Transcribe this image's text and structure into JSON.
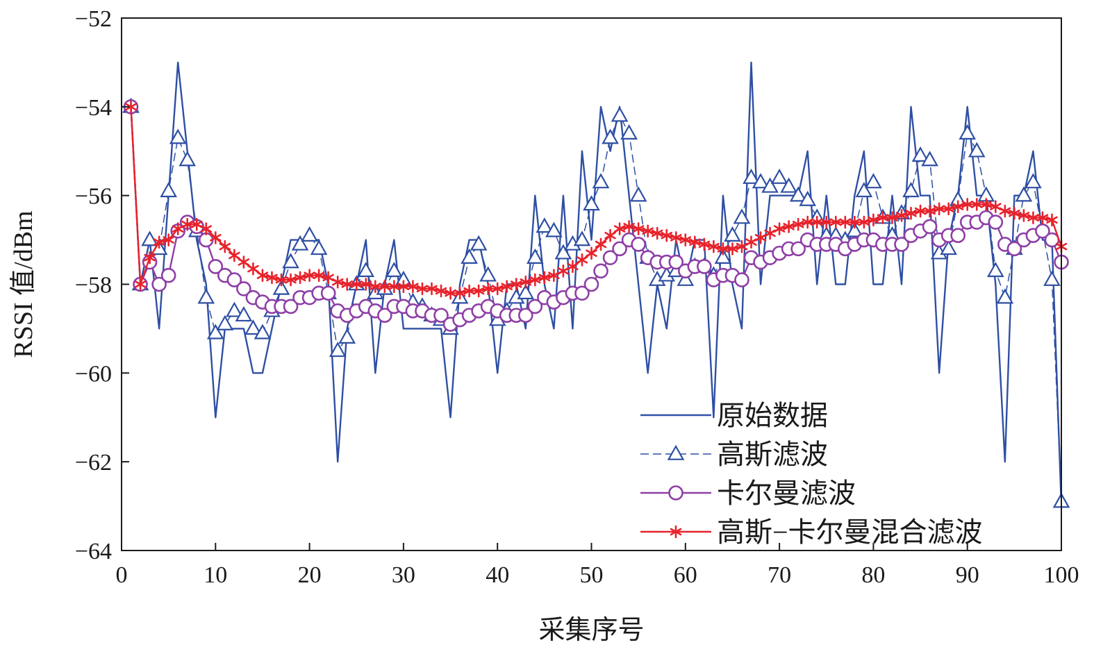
{
  "chart_data": {
    "type": "line",
    "xlabel": "采集序号",
    "ylabel": "RSSI 值/dBm",
    "xlim": [
      0,
      100
    ],
    "ylim": [
      -64,
      -52
    ],
    "xticks": [
      0,
      10,
      20,
      30,
      40,
      50,
      60,
      70,
      80,
      90,
      100
    ],
    "yticks": [
      -64,
      -62,
      -60,
      -58,
      -56,
      -54,
      -52
    ],
    "ytick_labels": [
      "−64",
      "−62",
      "−60",
      "−58",
      "−56",
      "−54",
      "−52"
    ],
    "grid": false,
    "legend_position": "bottom-right",
    "x": [
      1,
      2,
      3,
      4,
      5,
      6,
      7,
      8,
      9,
      10,
      11,
      12,
      13,
      14,
      15,
      16,
      17,
      18,
      19,
      20,
      21,
      22,
      23,
      24,
      25,
      26,
      27,
      28,
      29,
      30,
      31,
      32,
      33,
      34,
      35,
      36,
      37,
      38,
      39,
      40,
      41,
      42,
      43,
      44,
      45,
      46,
      47,
      48,
      49,
      50,
      51,
      52,
      53,
      54,
      55,
      56,
      57,
      58,
      59,
      60,
      61,
      62,
      63,
      64,
      65,
      66,
      67,
      68,
      69,
      70,
      71,
      72,
      73,
      74,
      75,
      76,
      77,
      78,
      79,
      80,
      81,
      82,
      83,
      84,
      85,
      86,
      87,
      88,
      89,
      90,
      91,
      92,
      93,
      94,
      95,
      96,
      97,
      98,
      99,
      100
    ],
    "series": [
      {
        "name": "原始数据",
        "color": "#2e4fa3",
        "marker": "none",
        "dash": "solid",
        "values": [
          -54,
          -58,
          -57,
          -59,
          -56,
          -53,
          -55,
          -57,
          -58,
          -61,
          -59,
          -59,
          -59,
          -60,
          -60,
          -59,
          -58,
          -57,
          -57,
          -57,
          -57,
          -58,
          -62,
          -59,
          -58,
          -57,
          -60,
          -58,
          -57,
          -59,
          -59,
          -59,
          -59,
          -59,
          -61,
          -58,
          -57,
          -57,
          -58,
          -60,
          -58,
          -58,
          -59,
          -56,
          -58,
          -59,
          -56,
          -59,
          -55,
          -57,
          -54,
          -55,
          -54,
          -56,
          -58,
          -60,
          -58,
          -59,
          -57,
          -58,
          -57,
          -57,
          -61,
          -56,
          -58,
          -59,
          -53,
          -58,
          -56,
          -56,
          -56,
          -56,
          -55,
          -58,
          -56,
          -58,
          -58,
          -56,
          -55,
          -58,
          -58,
          -56,
          -58,
          -54,
          -56,
          -56,
          -60,
          -57,
          -56,
          -54,
          -56,
          -56,
          -58,
          -62,
          -56,
          -56,
          -55,
          -57,
          -57,
          -63
        ]
      },
      {
        "name": "高斯滤波",
        "color": "#2e4fa3",
        "marker": "triangle",
        "dash": "dashed",
        "values": [
          -54,
          -58,
          -57,
          -57.2,
          -55.9,
          -54.7,
          -55.2,
          -56.8,
          -58.3,
          -59.1,
          -58.9,
          -58.6,
          -58.7,
          -59,
          -59.1,
          -58.6,
          -58.1,
          -57.5,
          -57.1,
          -56.9,
          -57.2,
          -58.2,
          -59.5,
          -59.2,
          -58,
          -57.7,
          -58.2,
          -58.1,
          -57.7,
          -57.9,
          -58.4,
          -58.5,
          -58.7,
          -58.8,
          -59,
          -58.3,
          -57.4,
          -57.1,
          -57.8,
          -58.8,
          -58.6,
          -58.3,
          -58.2,
          -57.4,
          -56.7,
          -56.8,
          -57.3,
          -57.1,
          -57,
          -56.2,
          -55.7,
          -54.7,
          -54.2,
          -54.6,
          -56,
          -57.4,
          -57.9,
          -57.8,
          -57.7,
          -57.9,
          -57.6,
          -57.6,
          -57.8,
          -57.4,
          -56.9,
          -56.5,
          -55.6,
          -55.7,
          -55.8,
          -55.6,
          -55.8,
          -56,
          -56.1,
          -56.5,
          -56.9,
          -56.9,
          -57,
          -56.8,
          -55.9,
          -55.7,
          -56.5,
          -56.9,
          -56.4,
          -55.9,
          -55.1,
          -55.2,
          -57.3,
          -57.2,
          -56.1,
          -54.6,
          -55,
          -56,
          -57.7,
          -58.3,
          -57.2,
          -56,
          -55.7,
          -56.8,
          -57.9,
          -62.9
        ]
      },
      {
        "name": "卡尔曼滤波",
        "color": "#8e3fa6",
        "marker": "circle",
        "dash": "solid",
        "values": [
          -54,
          -58,
          -57.5,
          -58,
          -57.8,
          -56.8,
          -56.6,
          -56.7,
          -57,
          -57.6,
          -57.8,
          -57.9,
          -58.1,
          -58.3,
          -58.4,
          -58.5,
          -58.5,
          -58.5,
          -58.3,
          -58.3,
          -58.2,
          -58.2,
          -58.6,
          -58.7,
          -58.6,
          -58.5,
          -58.6,
          -58.7,
          -58.5,
          -58.5,
          -58.6,
          -58.6,
          -58.7,
          -58.7,
          -58.9,
          -58.8,
          -58.7,
          -58.6,
          -58.5,
          -58.6,
          -58.7,
          -58.7,
          -58.7,
          -58.5,
          -58.3,
          -58.4,
          -58.3,
          -58.2,
          -58.2,
          -58,
          -57.7,
          -57.4,
          -57.2,
          -57,
          -57.1,
          -57.4,
          -57.5,
          -57.5,
          -57.5,
          -57.7,
          -57.6,
          -57.6,
          -57.9,
          -57.8,
          -57.8,
          -57.9,
          -57.4,
          -57.5,
          -57.4,
          -57.3,
          -57.2,
          -57.2,
          -57,
          -57.1,
          -57.1,
          -57.1,
          -57.2,
          -57.1,
          -57,
          -57,
          -57.1,
          -57.1,
          -57.1,
          -56.9,
          -56.8,
          -56.7,
          -57,
          -56.9,
          -56.9,
          -56.6,
          -56.6,
          -56.5,
          -56.6,
          -57.1,
          -57.2,
          -57,
          -56.9,
          -56.8,
          -57,
          -57.5
        ]
      },
      {
        "name": "高斯−卡尔曼混合滤波",
        "color": "#e8222b",
        "marker": "asterisk",
        "dash": "solid",
        "values": [
          -54,
          -58,
          -57.4,
          -57.05,
          -57,
          -56.75,
          -56.65,
          -56.65,
          -56.75,
          -56.95,
          -57.15,
          -57.35,
          -57.5,
          -57.65,
          -57.8,
          -57.85,
          -57.9,
          -57.9,
          -57.85,
          -57.8,
          -57.8,
          -57.85,
          -57.95,
          -58,
          -58,
          -58,
          -58.05,
          -58.05,
          -58.05,
          -58.05,
          -58.05,
          -58.1,
          -58.1,
          -58.15,
          -58.2,
          -58.2,
          -58.15,
          -58.15,
          -58.1,
          -58.1,
          -58.05,
          -58,
          -57.95,
          -57.9,
          -57.85,
          -57.8,
          -57.7,
          -57.6,
          -57.45,
          -57.3,
          -57.1,
          -56.9,
          -56.75,
          -56.7,
          -56.75,
          -56.8,
          -56.85,
          -56.9,
          -56.95,
          -57,
          -57.05,
          -57.1,
          -57.15,
          -57.2,
          -57.2,
          -57.15,
          -57.05,
          -56.95,
          -56.85,
          -56.75,
          -56.7,
          -56.65,
          -56.6,
          -56.6,
          -56.6,
          -56.6,
          -56.6,
          -56.6,
          -56.6,
          -56.55,
          -56.5,
          -56.5,
          -56.45,
          -56.4,
          -56.35,
          -56.35,
          -56.3,
          -56.3,
          -56.25,
          -56.2,
          -56.2,
          -56.2,
          -56.25,
          -56.35,
          -56.4,
          -56.45,
          -56.5,
          -56.5,
          -56.55,
          -57.15
        ]
      }
    ]
  }
}
